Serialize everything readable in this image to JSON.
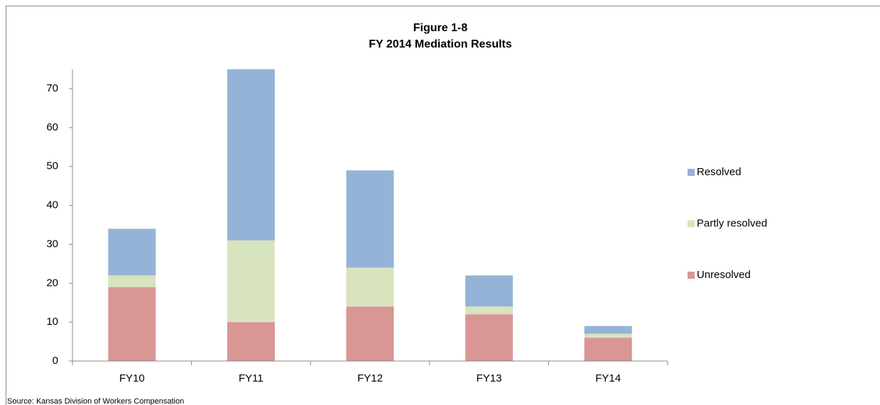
{
  "chart_data": {
    "type": "stacked_bar",
    "title": "Figure 1-8",
    "subtitle": "FY 2014 Mediation Results",
    "categories": [
      "FY10",
      "FY11",
      "FY12",
      "FY13",
      "FY14"
    ],
    "series": [
      {
        "name": "Unresolved",
        "color": "#d99694",
        "values": [
          19,
          10,
          14,
          12,
          6
        ]
      },
      {
        "name": "Partly resolved",
        "color": "#d7e4bd",
        "values": [
          3,
          21,
          10,
          2,
          1
        ]
      },
      {
        "name": "Resolved",
        "color": "#95b3d7",
        "values": [
          12,
          44,
          25,
          8,
          2
        ]
      }
    ],
    "ylim": [
      0,
      75
    ],
    "yticks": [
      0,
      10,
      20,
      30,
      40,
      50,
      60,
      70
    ],
    "grid": false,
    "legend": "right",
    "source": "Source: Kansas Division of Workers Compensation"
  }
}
